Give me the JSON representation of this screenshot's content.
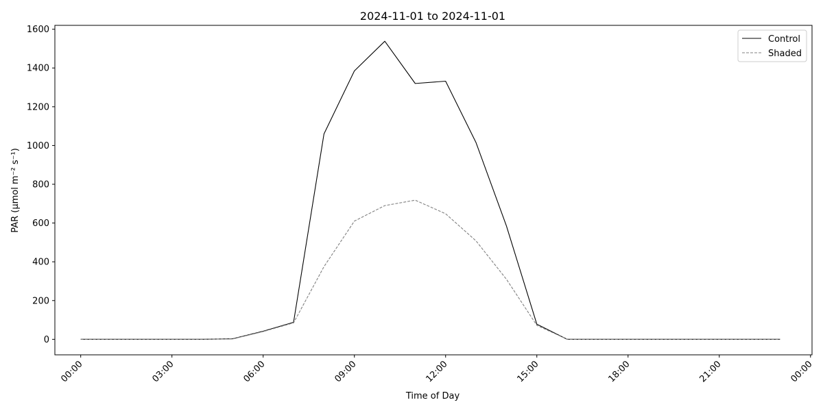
{
  "chart_data": {
    "type": "line",
    "title": "2024-11-01 to 2024-11-01",
    "xlabel": "Time of Day",
    "ylabel": "PAR (µmol m⁻² s⁻¹)",
    "x_hours": [
      0,
      1,
      2,
      3,
      4,
      5,
      6,
      7,
      8,
      9,
      10,
      11,
      12,
      13,
      14,
      15,
      16,
      17,
      18,
      19,
      20,
      21,
      22,
      23
    ],
    "xlim_hours": [
      -0.85,
      24.05
    ],
    "ylim": [
      -80,
      1620
    ],
    "x_ticks": [
      {
        "hour": 0,
        "label": "00:00"
      },
      {
        "hour": 3,
        "label": "03:00"
      },
      {
        "hour": 6,
        "label": "06:00"
      },
      {
        "hour": 9,
        "label": "09:00"
      },
      {
        "hour": 12,
        "label": "12:00"
      },
      {
        "hour": 15,
        "label": "15:00"
      },
      {
        "hour": 18,
        "label": "18:00"
      },
      {
        "hour": 21,
        "label": "21:00"
      },
      {
        "hour": 24,
        "label": "00:00"
      }
    ],
    "y_ticks": [
      0,
      200,
      400,
      600,
      800,
      1000,
      1200,
      1400,
      1600
    ],
    "grid": false,
    "legend_position": "top-right",
    "series": [
      {
        "name": "Control",
        "color": "#000000",
        "style": "solid",
        "values": [
          0,
          0,
          0,
          0,
          0,
          3,
          42,
          88,
          1060,
          1385,
          1538,
          1320,
          1332,
          1015,
          585,
          78,
          0,
          0,
          0,
          0,
          0,
          0,
          0,
          0
        ]
      },
      {
        "name": "Shaded",
        "color": "#808080",
        "style": "dashed",
        "values": [
          0,
          0,
          0,
          0,
          0,
          2,
          40,
          85,
          375,
          610,
          690,
          718,
          648,
          508,
          310,
          72,
          0,
          0,
          0,
          0,
          0,
          0,
          0,
          0
        ]
      }
    ]
  }
}
